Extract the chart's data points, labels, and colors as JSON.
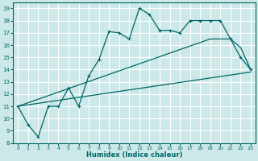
{
  "xlabel": "Humidex (Indice chaleur)",
  "bg_color": "#cce8e8",
  "grid_color": "#ffffff",
  "line_color": "#006666",
  "xlim": [
    -0.5,
    23.5
  ],
  "ylim": [
    8,
    19.5
  ],
  "yticks": [
    8,
    9,
    10,
    11,
    12,
    13,
    14,
    15,
    16,
    17,
    18,
    19
  ],
  "xticks": [
    0,
    1,
    2,
    3,
    4,
    5,
    6,
    7,
    8,
    9,
    10,
    11,
    12,
    13,
    14,
    15,
    16,
    17,
    18,
    19,
    20,
    21,
    22,
    23
  ],
  "line1_x": [
    0,
    1,
    2,
    3,
    4,
    5,
    6,
    7,
    8,
    9,
    10,
    11,
    12,
    13,
    14,
    15,
    16,
    17,
    18,
    19,
    20,
    21,
    22,
    23
  ],
  "line1_y": [
    11,
    9.5,
    8.5,
    11,
    11,
    12.5,
    11,
    13.5,
    14.8,
    17.1,
    17.0,
    16.5,
    19.0,
    18.5,
    17.2,
    17.2,
    17.0,
    18.0,
    18.0,
    18.0,
    18.0,
    16.5,
    15.0,
    14.0
  ],
  "line2_x": [
    0,
    19,
    21,
    22,
    23
  ],
  "line2_y": [
    11,
    16.5,
    16.5,
    15.8,
    14.0
  ],
  "line3_x": [
    0,
    23
  ],
  "line3_y": [
    11,
    13.8
  ]
}
